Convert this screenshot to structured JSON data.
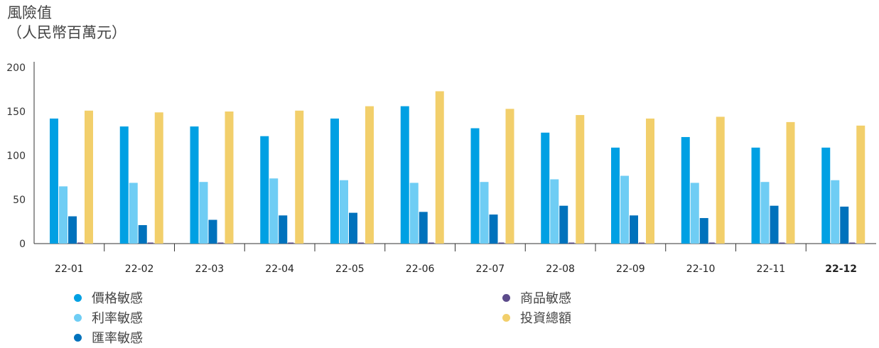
{
  "header": {
    "title": "風險值",
    "unit": "（人民幣百萬元）"
  },
  "chart_data": {
    "type": "bar",
    "ylabel": "風險值（人民幣百萬元）",
    "ylim": [
      0,
      200
    ],
    "yticks": [
      0,
      50,
      100,
      150,
      200
    ],
    "grid": false,
    "legend_position": "bottom",
    "categories": [
      "22-01",
      "22-02",
      "22-03",
      "22-04",
      "22-05",
      "22-06",
      "22-07",
      "22-08",
      "22-09",
      "22-10",
      "22-11",
      "22-12"
    ],
    "highlight_category": "22-12",
    "series": [
      {
        "name": "價格敏感",
        "color": "#00a0e3",
        "values": [
          142,
          133,
          133,
          122,
          142,
          156,
          131,
          126,
          109,
          121,
          109,
          109
        ]
      },
      {
        "name": "利率敏感",
        "color": "#6fcdf4",
        "values": [
          65,
          69,
          70,
          74,
          72,
          69,
          70,
          73,
          77,
          69,
          70,
          72
        ]
      },
      {
        "name": "匯率敏感",
        "color": "#0072bc",
        "values": [
          31,
          21,
          27,
          32,
          35,
          36,
          33,
          43,
          32,
          29,
          43,
          42
        ]
      },
      {
        "name": "商品敏感",
        "color": "#5c4b8b",
        "values": [
          0.5,
          0.5,
          0.5,
          0.5,
          0.5,
          0.5,
          0.5,
          0.5,
          0.5,
          0.5,
          0.5,
          0.5
        ]
      },
      {
        "name": "投資總額",
        "color": "#f2cf6b",
        "values": [
          151,
          149,
          150,
          151,
          156,
          173,
          153,
          146,
          142,
          144,
          138,
          134
        ]
      }
    ]
  },
  "legend": {
    "items": [
      {
        "label": "價格敏感",
        "color": "#00a0e3"
      },
      {
        "label": "利率敏感",
        "color": "#6fcdf4"
      },
      {
        "label": "匯率敏感",
        "color": "#0072bc"
      },
      {
        "label": "商品敏感",
        "color": "#5c4b8b"
      },
      {
        "label": "投資總額",
        "color": "#f2cf6b"
      }
    ]
  }
}
